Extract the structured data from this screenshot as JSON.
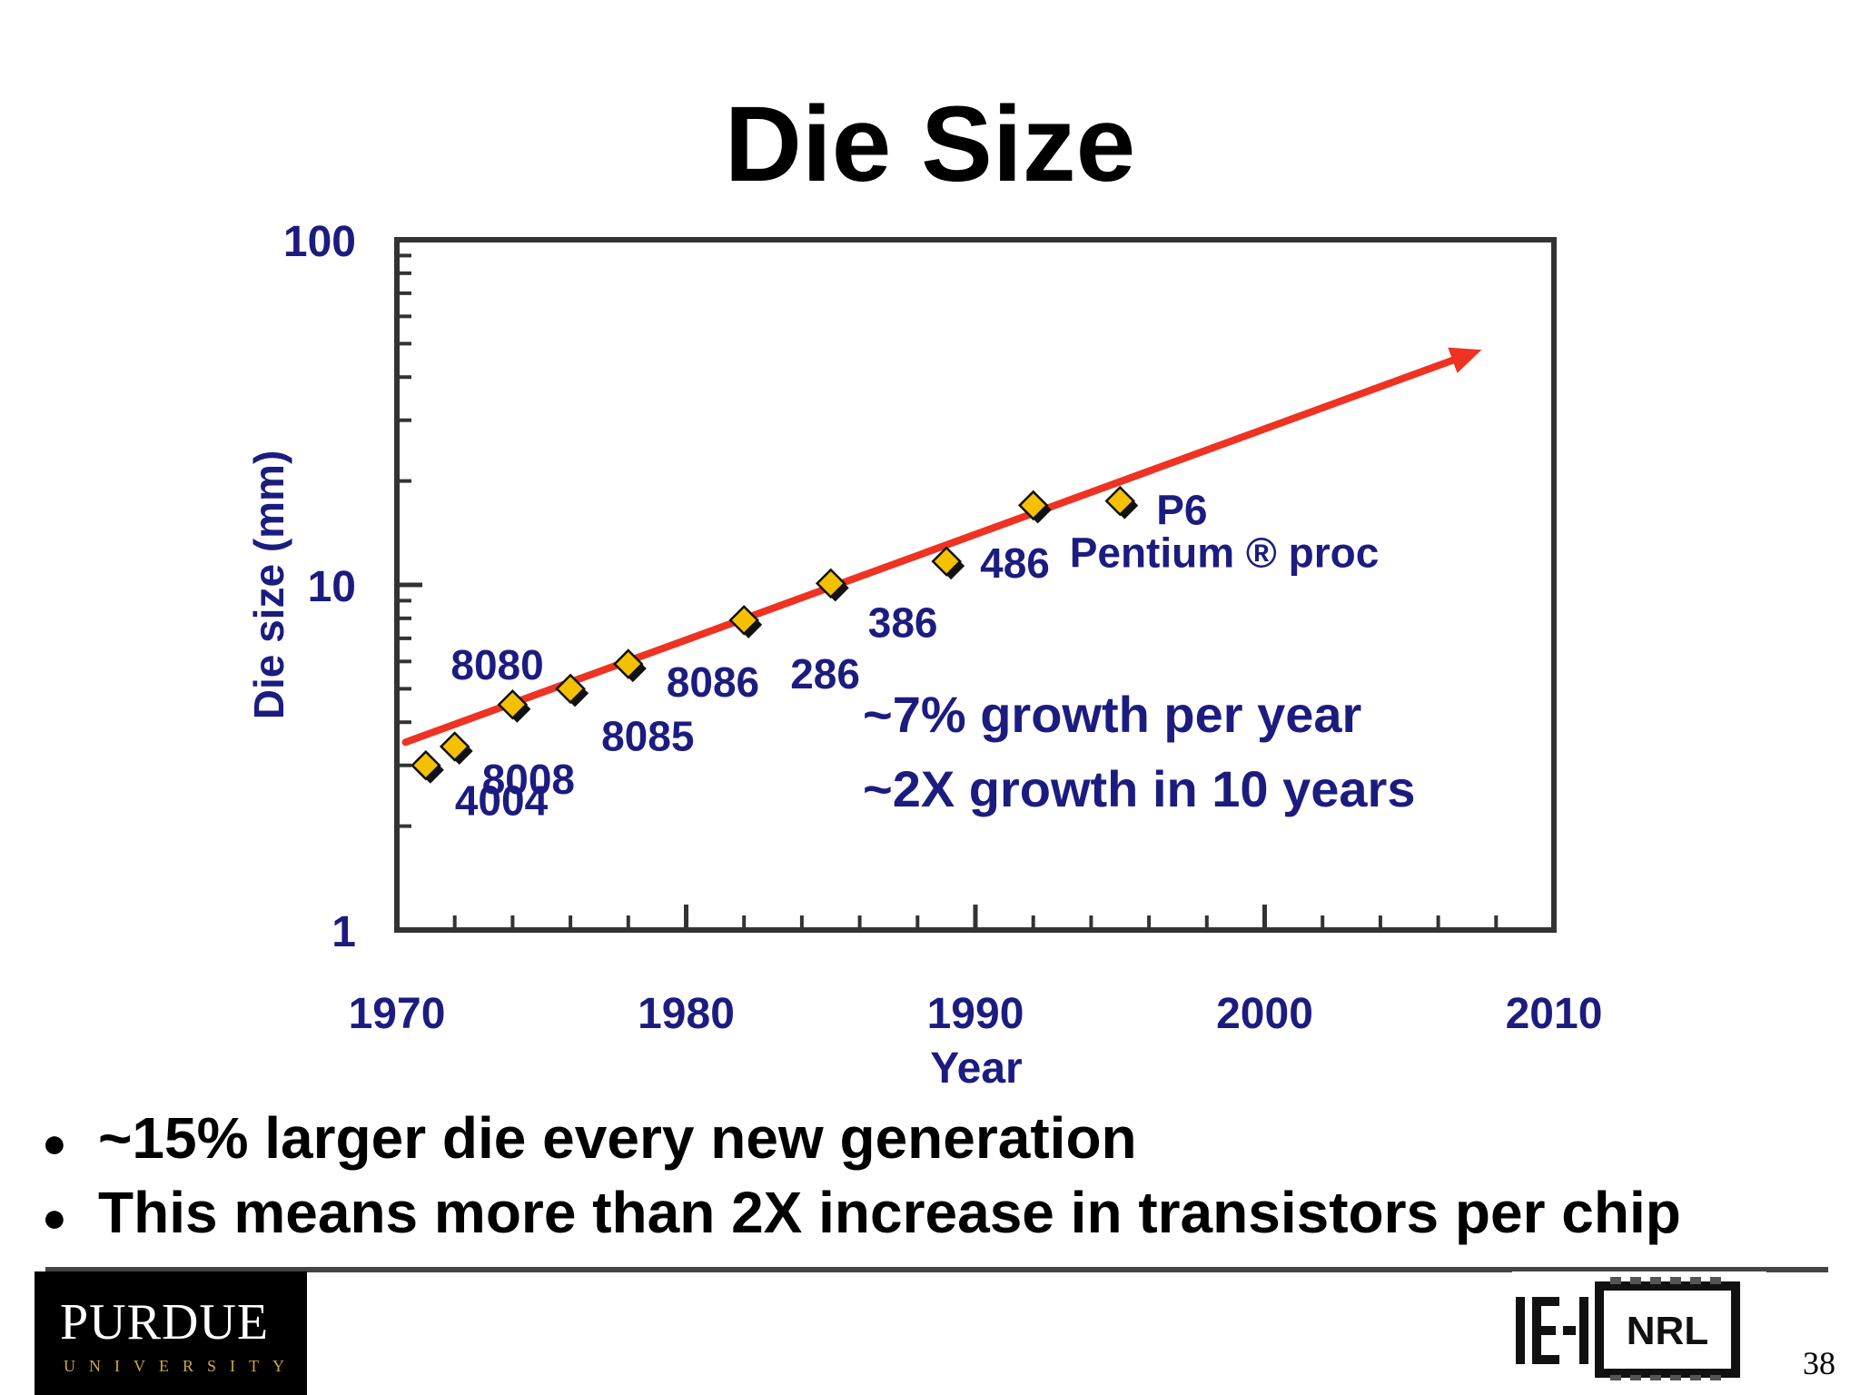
{
  "slide": {
    "title": "Die Size",
    "bullets": [
      "~15% larger die every new generation",
      "This means more than 2X increase in transistors per chip"
    ],
    "page_number": "38"
  },
  "logos": {
    "left": {
      "name": "PURDUE",
      "sub": "UNIVERSITY"
    },
    "right": {
      "text": "NRL"
    }
  },
  "chart_data": {
    "type": "scatter",
    "title": "",
    "xlabel": "Year",
    "ylabel": "Die size (mm)",
    "xlim": [
      1970,
      2010
    ],
    "ylim": [
      1,
      100
    ],
    "yscale": "log",
    "xticks": [
      1970,
      1980,
      1990,
      2000,
      2010
    ],
    "yticks": [
      1,
      10,
      100
    ],
    "points": [
      {
        "label": "4004",
        "x": 1971,
        "y": 3.0
      },
      {
        "label": "8008",
        "x": 1972,
        "y": 3.4
      },
      {
        "label": "8080",
        "x": 1974,
        "y": 4.5
      },
      {
        "label": "8085",
        "x": 1976,
        "y": 5.0
      },
      {
        "label": "8086",
        "x": 1978,
        "y": 5.9
      },
      {
        "label": "286",
        "x": 1982,
        "y": 7.9
      },
      {
        "label": "386",
        "x": 1985,
        "y": 10.1
      },
      {
        "label": "486",
        "x": 1989,
        "y": 11.7
      },
      {
        "label": "Pentium ® proc",
        "x": 1992,
        "y": 17.0
      },
      {
        "label": "P6",
        "x": 1995,
        "y": 17.5
      }
    ],
    "trend": {
      "x": [
        1970.3,
        2007.5
      ],
      "y": [
        3.5,
        48
      ]
    },
    "annotations": [
      "~7% growth per year",
      "~2X growth in 10 years"
    ],
    "colors": {
      "text": "#1c1c80",
      "trend": "#ee3322",
      "marker": "#f5c000",
      "marker_edge": "#000000"
    }
  }
}
